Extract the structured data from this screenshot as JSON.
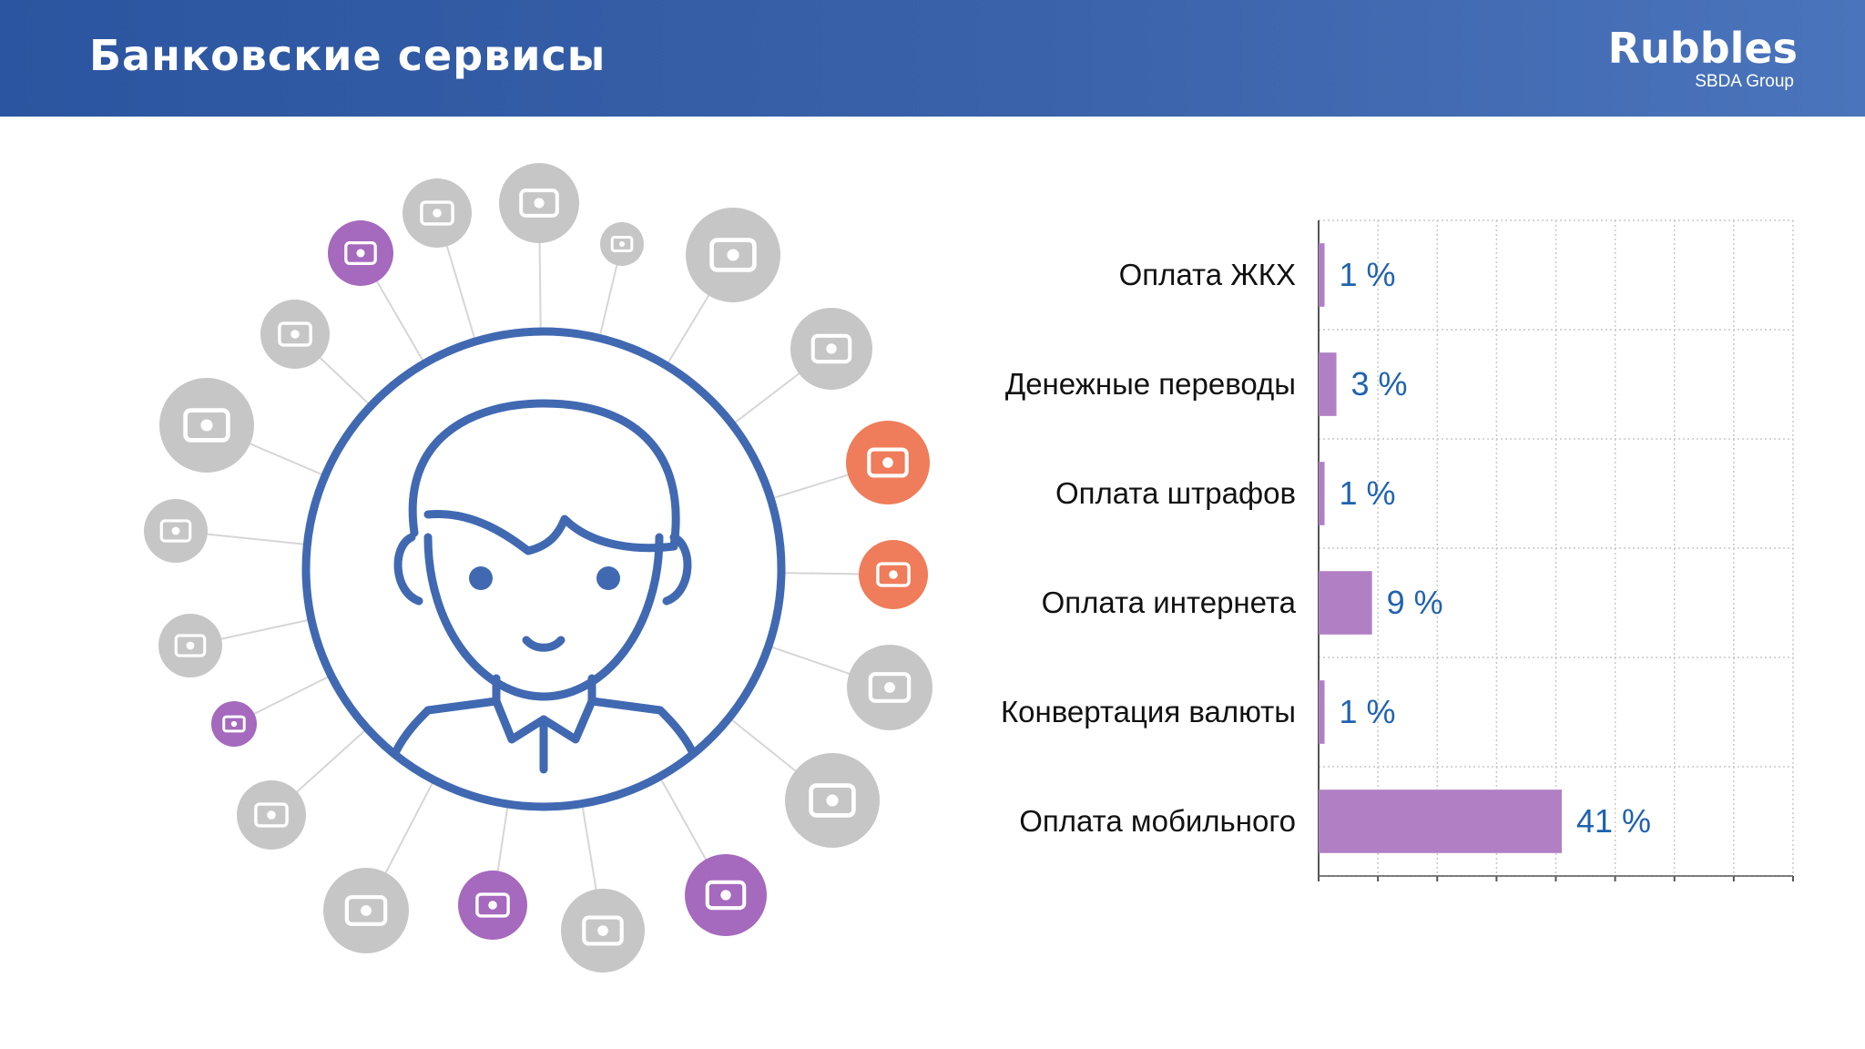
{
  "header": {
    "title": "Банковские сервисы",
    "logo": {
      "brand": "Rubbles",
      "sub": "SBDA Group"
    }
  },
  "colors": {
    "header_bg": "#3a62aa",
    "person_stroke": "#4169b2",
    "icon_gray": "#c6c6c6",
    "icon_purple": "#a569bd",
    "icon_orange": "#ef7c5a",
    "bar": "#b07fc4",
    "value_text": "#1f62b0"
  },
  "service_icons": [
    {
      "name": "gift-icon",
      "color": "gray"
    },
    {
      "name": "fork-knife-icon",
      "color": "gray"
    },
    {
      "name": "atm-cash-icon",
      "color": "purple"
    },
    {
      "name": "barber-icon",
      "color": "gray"
    },
    {
      "name": "airplane-icon",
      "color": "gray"
    },
    {
      "name": "music-icon",
      "color": "gray"
    },
    {
      "name": "car-icon",
      "color": "gray"
    },
    {
      "name": "beach-icon",
      "color": "gray"
    },
    {
      "name": "book-icon",
      "color": "orange"
    },
    {
      "name": "card-icon",
      "color": "orange"
    },
    {
      "name": "truck-icon",
      "color": "gray"
    },
    {
      "name": "paint-roller-icon",
      "color": "gray"
    },
    {
      "name": "faucet-icon",
      "color": "purple"
    },
    {
      "name": "camera-icon",
      "color": "gray"
    },
    {
      "name": "currency-exchange-icon",
      "color": "purple"
    },
    {
      "name": "baby-icon",
      "color": "gray"
    },
    {
      "name": "dumbbell-icon",
      "color": "gray"
    },
    {
      "name": "phone-icon",
      "color": "purple"
    },
    {
      "name": "pill-icon",
      "color": "gray"
    },
    {
      "name": "fridge-icon",
      "color": "gray"
    }
  ],
  "chart_data": {
    "type": "bar",
    "orientation": "horizontal",
    "categories": [
      "Оплата ЖКХ",
      "Денежные переводы",
      "Оплата штрафов",
      "Оплата интернета",
      "Конвертация валюты",
      "Оплата мобильного"
    ],
    "values": [
      1,
      3,
      1,
      9,
      1,
      41
    ],
    "value_labels": [
      "1 %",
      "3 %",
      "1 %",
      "9 %",
      "1 %",
      "41 %"
    ],
    "unit": "%",
    "xlim": [
      0,
      80
    ],
    "grid": true
  }
}
